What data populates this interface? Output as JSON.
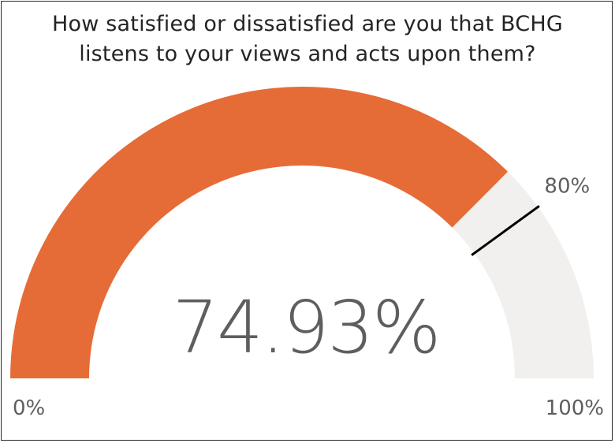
{
  "chart_data": {
    "type": "gauge",
    "title_lines": [
      "How satisfied or dissatisfied are you that BCHG",
      "listens to your views and acts upon them?"
    ],
    "value": 74.93,
    "value_label": "74.93%",
    "min": 0,
    "max": 100,
    "min_label": "0%",
    "max_label": "100%",
    "target": 80,
    "target_label": "80%",
    "colors": {
      "fill": "#E66C37",
      "track": "#F1F0EF",
      "target_line": "#000000",
      "value_text": "#605E5C",
      "label_text": "#605E5C"
    }
  }
}
